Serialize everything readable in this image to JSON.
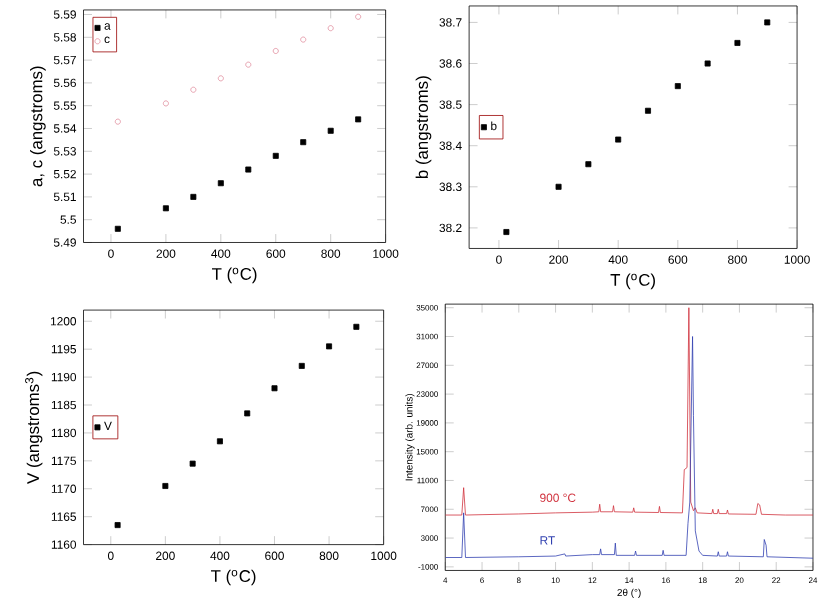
{
  "chart_data": [
    {
      "type": "scatter",
      "xlabel": "T ($^{o}$C)",
      "ylabel": "a, c (angstroms)",
      "x": [
        25,
        200,
        300,
        400,
        500,
        600,
        700,
        800,
        900
      ],
      "xlim": [
        -100,
        1000
      ],
      "xticks": [
        0,
        200,
        400,
        600,
        800,
        1000
      ],
      "ylim": [
        5.49,
        5.592
      ],
      "yticks": [
        5.49,
        5.5,
        5.51,
        5.52,
        5.53,
        5.54,
        5.55,
        5.56,
        5.57,
        5.58,
        5.59
      ],
      "legend": "top left",
      "series": [
        {
          "name": "a",
          "color": "#000000",
          "marker": "square",
          "values": [
            5.496,
            5.505,
            5.51,
            5.516,
            5.522,
            5.528,
            5.534,
            5.539,
            5.544
          ]
        },
        {
          "name": "c",
          "color": "#e08c9c",
          "marker": "circle",
          "values": [
            5.543,
            5.551,
            5.557,
            5.562,
            5.568,
            5.574,
            5.579,
            5.584,
            5.589
          ]
        }
      ]
    },
    {
      "type": "scatter",
      "xlabel": "T ($^{o}$C)",
      "ylabel": "b (angstroms)",
      "x": [
        25,
        200,
        300,
        400,
        500,
        600,
        700,
        800,
        900
      ],
      "xlim": [
        -100,
        1000
      ],
      "xticks": [
        0,
        200,
        400,
        600,
        800,
        1000
      ],
      "ylim": [
        38.15,
        38.74
      ],
      "yticks": [
        38.2,
        38.3,
        38.4,
        38.5,
        38.6,
        38.7
      ],
      "legend": "left",
      "series": [
        {
          "name": "b",
          "color": "#000000",
          "marker": "square",
          "values": [
            38.19,
            38.3,
            38.355,
            38.415,
            38.485,
            38.545,
            38.6,
            38.65,
            38.7
          ]
        }
      ]
    },
    {
      "type": "scatter",
      "xlabel": "T ($^{o}$C)",
      "ylabel": "V (angstroms$^{3}$)",
      "x": [
        25,
        200,
        300,
        400,
        500,
        600,
        700,
        800,
        900
      ],
      "xlim": [
        -100,
        1000
      ],
      "xticks": [
        0,
        200,
        400,
        600,
        800,
        1000
      ],
      "ylim": [
        1160,
        1202
      ],
      "yticks": [
        1160,
        1165,
        1170,
        1175,
        1180,
        1185,
        1190,
        1195,
        1200
      ],
      "legend": "left",
      "series": [
        {
          "name": "V",
          "color": "#000000",
          "marker": "square",
          "values": [
            1163.5,
            1170.5,
            1174.5,
            1178.5,
            1183.5,
            1188,
            1192,
            1195.5,
            1199
          ]
        }
      ]
    },
    {
      "type": "line",
      "xlabel": "2θ (°)",
      "ylabel": "Intensity (arb. units)",
      "xlim": [
        4,
        24
      ],
      "xticks": [
        4,
        6,
        8,
        10,
        12,
        14,
        16,
        18,
        20,
        22,
        24
      ],
      "ylim": [
        -1500,
        35500
      ],
      "yticks": [
        -1000,
        3000,
        7000,
        11000,
        15000,
        19000,
        23000,
        27000,
        31000,
        35000
      ],
      "legend": false,
      "series": [
        {
          "name": "900 °C",
          "color": "#d0303c",
          "x": [
            4.0,
            4.9,
            5.0,
            5.1,
            6,
            8,
            10,
            12,
            12.35,
            12.4,
            12.45,
            13.1,
            13.15,
            13.2,
            14.2,
            14.25,
            14.3,
            15.6,
            15.65,
            15.7,
            16.9,
            17.0,
            17.15,
            17.25,
            17.35,
            17.5,
            17.6,
            17.7,
            18.5,
            18.55,
            18.6,
            18.8,
            18.85,
            18.9,
            19.3,
            19.35,
            19.4,
            20.9,
            21.0,
            21.1,
            21.2,
            22.5,
            24
          ],
          "values": [
            6200,
            6200,
            10000,
            6200,
            6250,
            6350,
            6500,
            6600,
            6650,
            7700,
            6650,
            6650,
            7500,
            6650,
            6600,
            7200,
            6600,
            6550,
            7400,
            6550,
            6500,
            12500,
            12800,
            35000,
            8000,
            6800,
            7200,
            6500,
            6400,
            7000,
            6400,
            6400,
            7000,
            6400,
            6400,
            6900,
            6350,
            6300,
            7800,
            7600,
            6300,
            6200,
            6200
          ]
        },
        {
          "name": "RT",
          "color": "#3040b0",
          "x": [
            4.0,
            4.9,
            5.0,
            5.1,
            8,
            10,
            10.5,
            10.55,
            12,
            12.4,
            12.45,
            12.5,
            13.2,
            13.25,
            13.3,
            14.3,
            14.35,
            14.4,
            15.8,
            15.85,
            15.9,
            17.1,
            17.2,
            17.3,
            17.45,
            17.5,
            17.6,
            17.8,
            18.0,
            18.8,
            18.85,
            18.9,
            19.3,
            19.35,
            19.4,
            21.3,
            21.35,
            21.45,
            21.5,
            24
          ],
          "values": [
            300,
            300,
            6500,
            300,
            400,
            500,
            800,
            500,
            700,
            700,
            1500,
            700,
            700,
            2300,
            600,
            600,
            1200,
            600,
            600,
            1300,
            600,
            600,
            5000,
            8000,
            31000,
            20000,
            4000,
            1200,
            600,
            500,
            1100,
            500,
            500,
            1100,
            500,
            400,
            2800,
            2000,
            400,
            200
          ]
        }
      ]
    }
  ]
}
